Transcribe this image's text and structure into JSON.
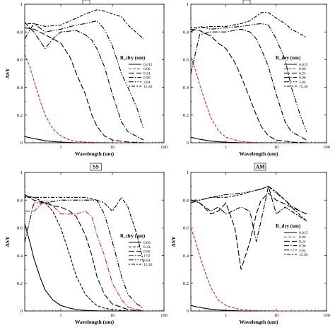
{
  "chart_data": [
    {
      "type": "line",
      "panel_tag": "",
      "xlabel": "Wavelength (um)",
      "ylabel": "ASY",
      "xscale": "log",
      "xlim": [
        0.2,
        100
      ],
      "ylim": [
        0,
        1
      ],
      "xticks": [
        "1",
        "10",
        "100"
      ],
      "yticks": [
        "0",
        "0.2",
        "0.4",
        "0.6",
        "0.8",
        "1"
      ],
      "legend": {
        "title": "R_dry (um)",
        "placement": "right-middle"
      },
      "series": [
        {
          "name": "0.015",
          "color": "#000000",
          "dash": "solid",
          "x": [
            0.2,
            0.3,
            0.5,
            0.8,
            1.0,
            1.5,
            2.0,
            3.0,
            5.0,
            10.0,
            20.0,
            40.0
          ],
          "y": [
            0.045,
            0.03,
            0.015,
            0.007,
            0.005,
            0.002,
            0.0,
            0.0,
            0.0,
            0.0,
            0.0,
            0.0
          ]
        },
        {
          "name": "0.06",
          "color": "#cc2a1e",
          "dash": "dashed",
          "x": [
            0.2,
            0.25,
            0.3,
            0.4,
            0.5,
            0.7,
            1.0,
            1.5,
            2.0,
            3.0,
            5.0,
            10.0,
            20.0,
            40.0
          ],
          "y": [
            0.64,
            0.55,
            0.45,
            0.3,
            0.2,
            0.1,
            0.05,
            0.02,
            0.01,
            0.005,
            0.002,
            0.0,
            0.0,
            0.0
          ]
        },
        {
          "name": "0.24",
          "color": "#000000",
          "dash": "longdash",
          "x": [
            0.2,
            0.3,
            0.5,
            0.7,
            1.0,
            1.5,
            2.0,
            3.0,
            4.0,
            5.0,
            7.0,
            10.0,
            20.0,
            40.0
          ],
          "y": [
            0.83,
            0.82,
            0.78,
            0.75,
            0.72,
            0.62,
            0.5,
            0.35,
            0.2,
            0.12,
            0.05,
            0.02,
            0.005,
            0.0
          ]
        },
        {
          "name": "0.96",
          "color": "#000000",
          "dash": "dashdot",
          "x": [
            0.2,
            0.3,
            0.5,
            0.7,
            1.0,
            2.0,
            3.0,
            4.0,
            5.0,
            7.0,
            10.0,
            15.0,
            20.0,
            40.0
          ],
          "y": [
            0.87,
            0.8,
            0.68,
            0.75,
            0.8,
            0.81,
            0.78,
            0.74,
            0.68,
            0.55,
            0.35,
            0.15,
            0.08,
            0.02
          ]
        },
        {
          "name": "3.84",
          "color": "#000000",
          "dash": "dashdotdot",
          "x": [
            0.2,
            0.3,
            0.5,
            1.0,
            2.0,
            3.0,
            5.0,
            7.0,
            10.0,
            15.0,
            20.0,
            30.0,
            40.0
          ],
          "y": [
            0.75,
            0.86,
            0.8,
            0.82,
            0.85,
            0.86,
            0.88,
            0.82,
            0.7,
            0.5,
            0.4,
            0.25,
            0.1
          ]
        },
        {
          "name": "15.36",
          "color": "#000000",
          "dash": "dotdash",
          "x": [
            0.2,
            0.3,
            0.5,
            1.0,
            2.0,
            3.0,
            5.0,
            7.0,
            10.0,
            15.0,
            20.0,
            40.0
          ],
          "y": [
            0.86,
            0.86,
            0.84,
            0.85,
            0.9,
            0.93,
            0.96,
            0.95,
            0.93,
            0.91,
            0.85,
            0.75
          ]
        }
      ]
    },
    {
      "type": "line",
      "panel_tag": "",
      "xlabel": "Wavelength (um)",
      "ylabel": "",
      "xscale": "log",
      "xlim": [
        0.2,
        100
      ],
      "ylim": [
        0,
        1
      ],
      "xticks": [
        "1",
        "10",
        "100"
      ],
      "yticks": [
        "0",
        "0.2",
        "0.4",
        "0.6",
        "0.8",
        "1"
      ],
      "legend": {
        "title": "R_dry (um)",
        "placement": "right-middle"
      },
      "series": [
        {
          "name": "0.015",
          "color": "#000000",
          "dash": "solid",
          "x": [
            0.2,
            0.3,
            0.5,
            0.8,
            1.0,
            1.5,
            2.0,
            3.0,
            5.0,
            10.0,
            20.0,
            40.0
          ],
          "y": [
            0.04,
            0.025,
            0.012,
            0.006,
            0.004,
            0.002,
            0.0,
            0.0,
            0.0,
            0.0,
            0.0,
            0.0
          ]
        },
        {
          "name": "0.06",
          "color": "#cc2a1e",
          "dash": "dashed",
          "x": [
            0.2,
            0.25,
            0.3,
            0.4,
            0.5,
            0.7,
            1.0,
            1.5,
            2.0,
            3.0,
            5.0,
            10.0,
            20.0,
            40.0
          ],
          "y": [
            0.62,
            0.52,
            0.42,
            0.28,
            0.18,
            0.09,
            0.04,
            0.02,
            0.01,
            0.004,
            0.001,
            0.0,
            0.0,
            0.0
          ]
        },
        {
          "name": "0.24",
          "color": "#000000",
          "dash": "longdash",
          "x": [
            0.2,
            0.3,
            0.5,
            0.7,
            1.0,
            1.5,
            2.0,
            3.0,
            4.0,
            5.0,
            7.0,
            10.0,
            20.0,
            40.0
          ],
          "y": [
            0.82,
            0.81,
            0.77,
            0.72,
            0.68,
            0.58,
            0.48,
            0.32,
            0.2,
            0.12,
            0.05,
            0.02,
            0.005,
            0.0
          ]
        },
        {
          "name": "0.96",
          "color": "#000000",
          "dash": "dashdot",
          "x": [
            0.2,
            0.3,
            0.5,
            0.7,
            1.0,
            2.0,
            3.0,
            4.0,
            5.0,
            7.0,
            10.0,
            15.0,
            20.0,
            40.0
          ],
          "y": [
            0.5,
            0.78,
            0.8,
            0.8,
            0.8,
            0.82,
            0.8,
            0.75,
            0.68,
            0.55,
            0.35,
            0.15,
            0.08,
            0.02
          ]
        },
        {
          "name": "3.84",
          "color": "#000000",
          "dash": "dashdotdot",
          "x": [
            0.2,
            0.3,
            0.5,
            1.0,
            2.0,
            3.0,
            5.0,
            7.0,
            10.0,
            15.0,
            20.0,
            30.0,
            40.0
          ],
          "y": [
            0.8,
            0.84,
            0.82,
            0.83,
            0.84,
            0.85,
            0.86,
            0.85,
            0.75,
            0.6,
            0.4,
            0.2,
            0.08
          ]
        },
        {
          "name": "15.36",
          "color": "#000000",
          "dash": "dotdash",
          "x": [
            0.2,
            0.3,
            0.5,
            1.0,
            2.0,
            3.0,
            5.0,
            7.0,
            10.0,
            15.0,
            20.0,
            40.0
          ],
          "y": [
            0.83,
            0.83,
            0.84,
            0.84,
            0.86,
            0.88,
            0.94,
            0.94,
            0.9,
            0.86,
            0.82,
            0.76
          ]
        }
      ]
    },
    {
      "type": "line",
      "panel_tag": "SS",
      "xlabel": "Wavelength (um)",
      "ylabel": "ASY",
      "xscale": "log",
      "xlim": [
        0.2,
        100
      ],
      "ylim": [
        0,
        1
      ],
      "xticks": [
        "1",
        "10",
        "100"
      ],
      "yticks": [
        "0",
        "0.2",
        "0.4",
        "0.6",
        "0.8",
        "1"
      ],
      "legend": {
        "title": "R_dry (um)",
        "placement": "right-middle"
      },
      "series": [
        {
          "name": "0.06",
          "color": "#000000",
          "dash": "solid",
          "x": [
            0.2,
            0.25,
            0.3,
            0.4,
            0.5,
            0.7,
            1.0,
            1.5,
            2.0,
            3.0,
            5.0,
            10.0,
            20.0,
            40.0
          ],
          "y": [
            0.63,
            0.5,
            0.38,
            0.24,
            0.15,
            0.08,
            0.04,
            0.02,
            0.01,
            0.004,
            0.001,
            0.0,
            0.0,
            0.0
          ]
        },
        {
          "name": "0.24",
          "color": "#000000",
          "dash": "dashed",
          "x": [
            0.2,
            0.3,
            0.5,
            0.7,
            1.0,
            1.5,
            2.0,
            3.0,
            4.0,
            5.0,
            7.0,
            10.0,
            20.0,
            40.0
          ],
          "y": [
            0.83,
            0.82,
            0.78,
            0.72,
            0.6,
            0.4,
            0.25,
            0.12,
            0.07,
            0.04,
            0.02,
            0.01,
            0.0,
            0.0
          ]
        },
        {
          "name": "0.96",
          "color": "#000000",
          "dash": "longdash",
          "x": [
            0.2,
            0.3,
            0.5,
            0.7,
            1.0,
            1.5,
            2.0,
            3.0,
            4.0,
            5.0,
            7.0,
            10.0,
            20.0,
            40.0
          ],
          "y": [
            0.84,
            0.8,
            0.78,
            0.76,
            0.75,
            0.72,
            0.68,
            0.55,
            0.4,
            0.25,
            0.12,
            0.05,
            0.01,
            0.0
          ]
        },
        {
          "name": "1.92",
          "color": "#cc2a1e",
          "dash": "dashdot",
          "x": [
            0.2,
            0.3,
            0.5,
            0.7,
            1.0,
            2.0,
            3.0,
            4.0,
            5.0,
            7.0,
            10.0,
            15.0,
            20.0,
            40.0
          ],
          "y": [
            0.72,
            0.72,
            0.8,
            0.76,
            0.7,
            0.7,
            0.72,
            0.68,
            0.55,
            0.4,
            0.2,
            0.08,
            0.03,
            0.0
          ]
        },
        {
          "name": "3.84",
          "color": "#000000",
          "dash": "dashdotdot",
          "x": [
            0.2,
            0.3,
            0.5,
            1.0,
            2.0,
            3.0,
            5.0,
            7.0,
            10.0,
            15.0,
            20.0,
            30.0,
            40.0
          ],
          "y": [
            0.5,
            0.78,
            0.78,
            0.8,
            0.8,
            0.8,
            0.8,
            0.7,
            0.5,
            0.25,
            0.12,
            0.05,
            0.02
          ]
        },
        {
          "name": "15.36",
          "color": "#000000",
          "dash": "dotdash",
          "x": [
            0.2,
            0.3,
            0.5,
            1.0,
            2.0,
            3.0,
            5.0,
            7.0,
            10.0,
            15.0,
            20.0,
            30.0,
            40.0
          ],
          "y": [
            0.82,
            0.82,
            0.82,
            0.82,
            0.82,
            0.82,
            0.8,
            0.78,
            0.72,
            0.82,
            0.75,
            0.55,
            0.35
          ]
        }
      ]
    },
    {
      "type": "line",
      "panel_tag": "AM",
      "xlabel": "Wavelength (um)",
      "ylabel": "ASY",
      "xscale": "log",
      "xlim": [
        0.2,
        100
      ],
      "ylim": [
        0,
        1
      ],
      "xticks": [
        "1",
        "10",
        "100"
      ],
      "yticks": [
        "0",
        "0.2",
        "0.4",
        "0.6",
        "0.8",
        "1"
      ],
      "legend": {
        "title": "R_dry (um)",
        "placement": "right-middle"
      },
      "series": [
        {
          "name": "0.015",
          "color": "#000000",
          "dash": "solid",
          "x": [
            0.2,
            0.3,
            0.5,
            0.8,
            1.0,
            1.5,
            2.0,
            3.0,
            5.0,
            10.0,
            20.0,
            40.0
          ],
          "y": [
            0.04,
            0.025,
            0.012,
            0.006,
            0.004,
            0.002,
            0.0,
            0.0,
            0.0,
            0.0,
            0.0,
            0.0
          ]
        },
        {
          "name": "0.06",
          "color": "#cc2a1e",
          "dash": "dashed",
          "x": [
            0.2,
            0.25,
            0.3,
            0.4,
            0.5,
            0.7,
            1.0,
            1.5,
            2.0,
            3.0,
            5.0,
            10.0,
            20.0,
            40.0
          ],
          "y": [
            0.6,
            0.5,
            0.4,
            0.26,
            0.17,
            0.08,
            0.04,
            0.02,
            0.01,
            0.004,
            0.001,
            0.0,
            0.0,
            0.0
          ]
        },
        {
          "name": "0.24",
          "color": "#000000",
          "dash": "longdash",
          "x": [
            0.2,
            0.3,
            0.5,
            0.7,
            1.0,
            1.5,
            2.0,
            3.0,
            4.0,
            5.0,
            7.0,
            10.0,
            20.0,
            40.0
          ],
          "y": [
            0.8,
            0.78,
            0.7,
            0.72,
            0.78,
            0.6,
            0.3,
            0.5,
            0.7,
            0.8,
            0.85,
            0.8,
            0.75,
            0.7
          ]
        },
        {
          "name": "0.96",
          "color": "#000000",
          "dash": "dashdot",
          "x": [
            0.2,
            0.3,
            0.5,
            0.7,
            1.0,
            2.0,
            3.0,
            4.0,
            5.0,
            7.0,
            10.0,
            15.0,
            20.0,
            40.0
          ],
          "y": [
            0.8,
            0.78,
            0.72,
            0.75,
            0.7,
            0.75,
            0.72,
            0.5,
            0.65,
            0.9,
            0.7,
            0.75,
            0.72,
            0.65
          ]
        },
        {
          "name": "3.84",
          "color": "#000000",
          "dash": "dashdotdot",
          "x": [
            0.2,
            0.3,
            0.5,
            1.0,
            2.0,
            3.0,
            5.0,
            7.0,
            10.0,
            15.0,
            20.0,
            30.0,
            40.0
          ],
          "y": [
            0.78,
            0.8,
            0.82,
            0.84,
            0.85,
            0.86,
            0.88,
            0.9,
            0.85,
            0.8,
            0.76,
            0.72,
            0.7
          ]
        },
        {
          "name": "15.36",
          "color": "#000000",
          "dash": "dotdash",
          "x": [
            0.2,
            0.3,
            0.5,
            1.0,
            2.0,
            3.0,
            5.0,
            7.0,
            10.0,
            15.0,
            20.0,
            40.0
          ],
          "y": [
            0.8,
            0.8,
            0.82,
            0.82,
            0.84,
            0.86,
            0.88,
            0.9,
            0.86,
            0.8,
            0.75,
            0.65
          ]
        }
      ]
    }
  ]
}
